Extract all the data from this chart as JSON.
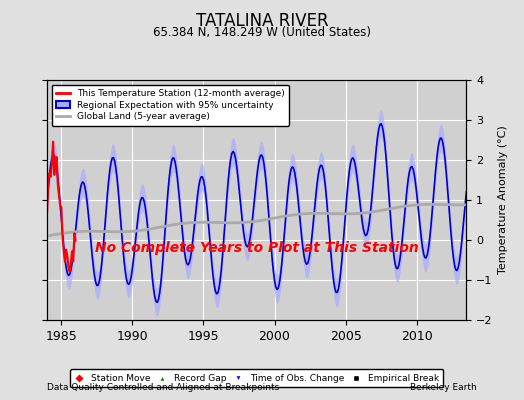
{
  "title": "TATALINA RIVER",
  "subtitle": "65.384 N, 148.249 W (United States)",
  "ylabel": "Temperature Anomaly (°C)",
  "xlabel_left": "Data Quality Controlled and Aligned at Breakpoints",
  "xlabel_right": "Berkeley Earth",
  "ylim": [
    -2,
    4
  ],
  "xlim": [
    1984.0,
    2013.5
  ],
  "xticks": [
    1985,
    1990,
    1995,
    2000,
    2005,
    2010
  ],
  "yticks": [
    -2,
    -1,
    0,
    1,
    2,
    3,
    4
  ],
  "bg_color": "#e0e0e0",
  "plot_bg_color": "#d0d0d0",
  "grid_color": "#ffffff",
  "annotation_text": "No Complete Years to Plot at This Station",
  "annotation_color": "red",
  "legend1_items": [
    {
      "label": "This Temperature Station (12-month average)",
      "color": "red",
      "lw": 2
    },
    {
      "label": "Regional Expectation with 95% uncertainty",
      "color": "#0000cc",
      "fill": "#aaaaff",
      "lw": 2
    },
    {
      "label": "Global Land (5-year average)",
      "color": "#aaaaaa",
      "lw": 2
    }
  ],
  "legend2_items": [
    {
      "label": "Station Move",
      "marker": "D",
      "color": "red"
    },
    {
      "label": "Record Gap",
      "marker": "^",
      "color": "green"
    },
    {
      "label": "Time of Obs. Change",
      "marker": "v",
      "color": "blue"
    },
    {
      "label": "Empirical Break",
      "marker": "s",
      "color": "black"
    }
  ]
}
